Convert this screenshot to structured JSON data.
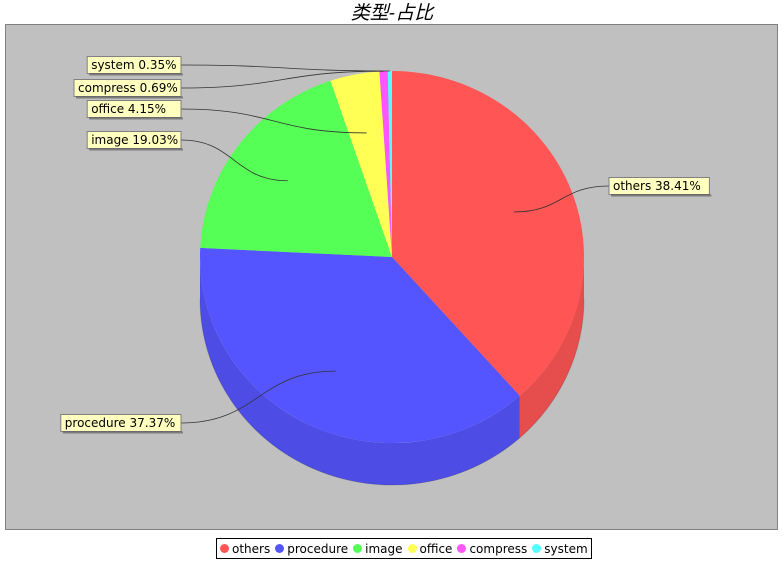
{
  "chart_data": {
    "type": "pie",
    "title": "类型-占比",
    "slices": [
      {
        "name": "others",
        "value": 38.41,
        "label": "others  38.41%",
        "color": "#ff5555"
      },
      {
        "name": "procedure",
        "value": 37.37,
        "label": "procedure  37.37%",
        "color": "#5555ff"
      },
      {
        "name": "image",
        "value": 19.03,
        "label": "image  19.03%",
        "color": "#55ff55"
      },
      {
        "name": "office",
        "value": 4.15,
        "label": "office  4.15%",
        "color": "#ffff55"
      },
      {
        "name": "compress",
        "value": 0.69,
        "label": "compress  0.69%",
        "color": "#ff55ff"
      },
      {
        "name": "system",
        "value": 0.35,
        "label": "system  0.35%",
        "color": "#55ffff"
      }
    ],
    "legend": "bottom",
    "style": "3d"
  }
}
